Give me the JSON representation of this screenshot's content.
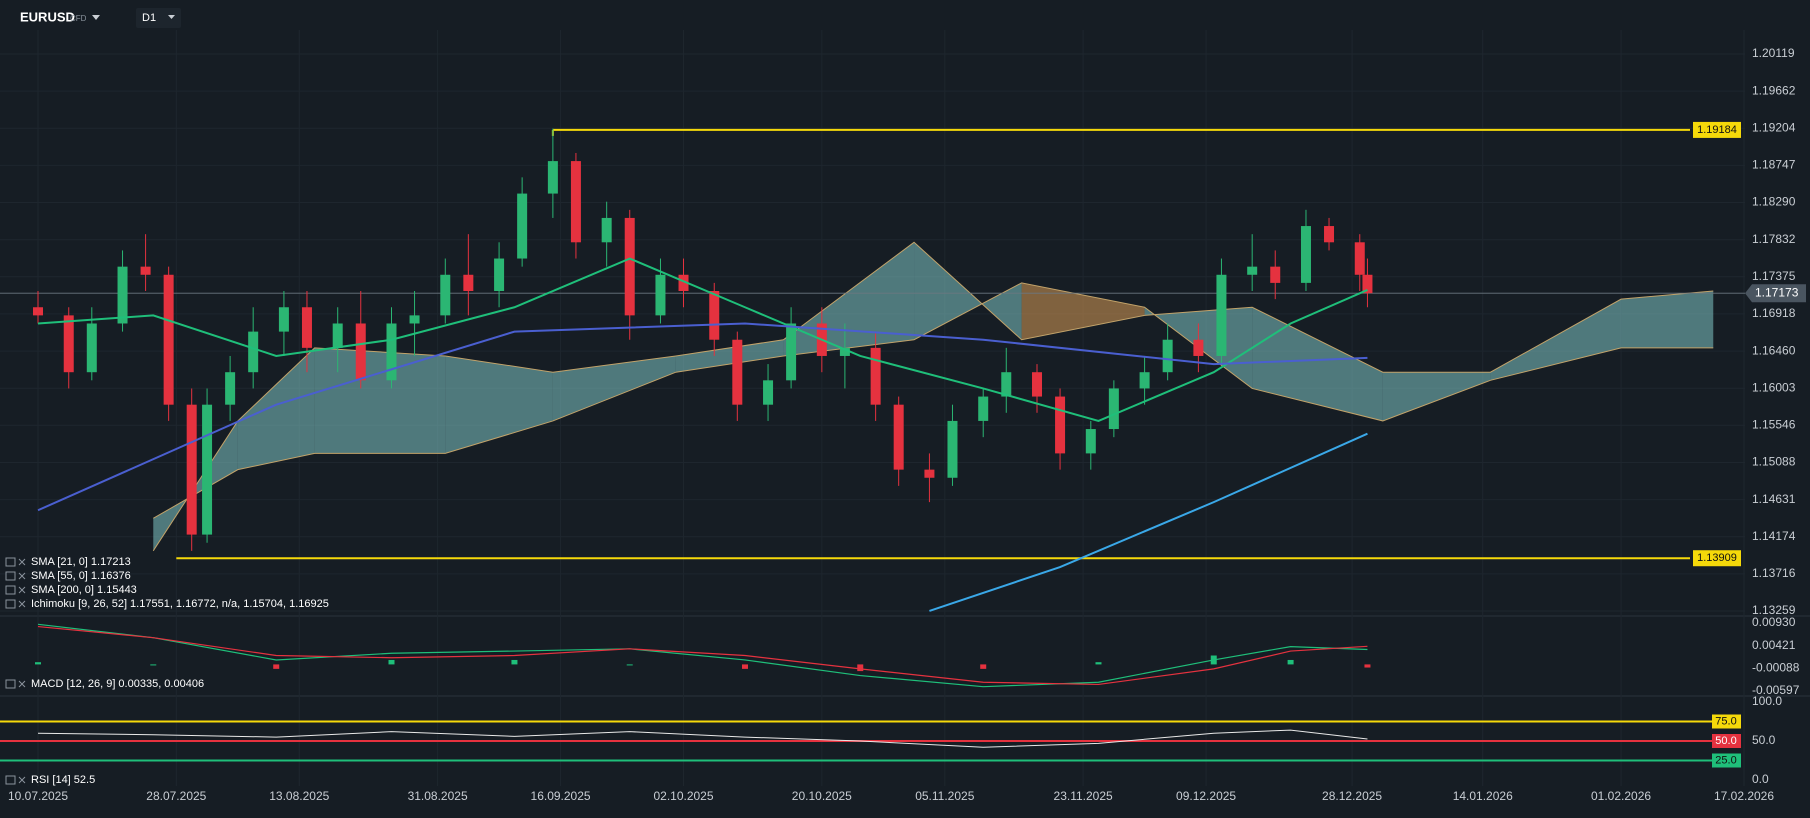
{
  "header": {
    "symbol": "EURUSD",
    "instrument_type": "CFD",
    "timeframe": "D1"
  },
  "chart_data": [
    {
      "type": "candlestick",
      "x": [
        "10.07.2025",
        "14.07.2025",
        "17.07.2025",
        "21.07.2025",
        "24.07.2025",
        "27.07.2025",
        "30.07.2025",
        "01.08.2025",
        "04.08.2025",
        "07.08.2025",
        "11.08.2025",
        "14.08.2025",
        "18.08.2025",
        "21.08.2025",
        "25.08.2025",
        "28.08.2025",
        "01.09.2025",
        "04.09.2025",
        "08.09.2025",
        "11.09.2025",
        "15.09.2025",
        "18.09.2025",
        "22.09.2025",
        "25.09.2025",
        "29.09.2025",
        "02.10.2025",
        "06.10.2025",
        "09.10.2025",
        "13.10.2025",
        "16.10.2025",
        "20.10.2025",
        "23.10.2025",
        "27.10.2025",
        "30.10.2025",
        "03.11.2025",
        "06.11.2025",
        "10.11.2025",
        "13.11.2025",
        "17.11.2025",
        "20.11.2025",
        "24.11.2025",
        "27.11.2025",
        "01.12.2025",
        "04.12.2025",
        "08.12.2025",
        "11.12.2025",
        "15.12.2025",
        "18.12.2025",
        "22.12.2025",
        "25.12.2025",
        "29.12.2025",
        "30.12.2025"
      ],
      "open": [
        1.17,
        1.169,
        1.162,
        1.168,
        1.175,
        1.174,
        1.158,
        1.142,
        1.158,
        1.162,
        1.167,
        1.17,
        1.165,
        1.168,
        1.161,
        1.168,
        1.169,
        1.174,
        1.172,
        1.176,
        1.184,
        1.188,
        1.178,
        1.181,
        1.169,
        1.174,
        1.172,
        1.166,
        1.158,
        1.161,
        1.168,
        1.164,
        1.165,
        1.158,
        1.15,
        1.149,
        1.156,
        1.159,
        1.162,
        1.159,
        1.152,
        1.155,
        1.16,
        1.162,
        1.166,
        1.164,
        1.174,
        1.175,
        1.173,
        1.18,
        1.178,
        1.174
      ],
      "high": [
        1.172,
        1.17,
        1.17,
        1.177,
        1.179,
        1.175,
        1.16,
        1.16,
        1.164,
        1.17,
        1.172,
        1.172,
        1.17,
        1.172,
        1.17,
        1.172,
        1.176,
        1.179,
        1.178,
        1.186,
        1.192,
        1.189,
        1.183,
        1.182,
        1.176,
        1.176,
        1.173,
        1.167,
        1.163,
        1.17,
        1.17,
        1.168,
        1.167,
        1.159,
        1.152,
        1.158,
        1.16,
        1.165,
        1.163,
        1.16,
        1.156,
        1.161,
        1.164,
        1.168,
        1.168,
        1.176,
        1.179,
        1.177,
        1.182,
        1.181,
        1.179,
        1.176
      ],
      "low": [
        1.168,
        1.16,
        1.161,
        1.167,
        1.172,
        1.156,
        1.14,
        1.141,
        1.156,
        1.16,
        1.164,
        1.162,
        1.162,
        1.16,
        1.16,
        1.164,
        1.168,
        1.169,
        1.17,
        1.175,
        1.181,
        1.176,
        1.175,
        1.166,
        1.168,
        1.17,
        1.164,
        1.156,
        1.156,
        1.16,
        1.162,
        1.16,
        1.156,
        1.148,
        1.146,
        1.148,
        1.154,
        1.157,
        1.157,
        1.15,
        1.15,
        1.154,
        1.158,
        1.161,
        1.162,
        1.163,
        1.172,
        1.171,
        1.172,
        1.177,
        1.172,
        1.17
      ],
      "close": [
        1.169,
        1.162,
        1.168,
        1.175,
        1.174,
        1.158,
        1.142,
        1.158,
        1.162,
        1.167,
        1.17,
        1.165,
        1.168,
        1.161,
        1.168,
        1.169,
        1.174,
        1.172,
        1.176,
        1.184,
        1.188,
        1.178,
        1.181,
        1.169,
        1.174,
        1.172,
        1.166,
        1.158,
        1.161,
        1.168,
        1.164,
        1.165,
        1.158,
        1.15,
        1.149,
        1.156,
        1.159,
        1.162,
        1.159,
        1.152,
        1.155,
        1.16,
        1.162,
        1.166,
        1.164,
        1.174,
        1.175,
        1.173,
        1.18,
        1.178,
        1.174,
        1.17173
      ],
      "colors": {
        "up": "#2bb673",
        "down": "#e5323f"
      },
      "ylim": [
        1.13259,
        1.20119
      ],
      "yticks": [
        1.13259,
        1.13716,
        1.14174,
        1.14631,
        1.15088,
        1.15546,
        1.16003,
        {
          "value": 1.1646,
          "label": "1.16460"
        },
        1.16918,
        1.17375,
        1.17832,
        {
          "value": 1.1829,
          "label": "1.18290"
        },
        1.18747,
        1.19204,
        1.19662,
        1.20119
      ],
      "xlim": [
        "10.07.2025",
        "17.02.2026"
      ],
      "xticks": [
        "10.07.2025",
        "28.07.2025",
        "13.08.2025",
        "31.08.2025",
        "16.09.2025",
        "02.10.2025",
        "20.10.2025",
        "05.11.2025",
        "23.11.2025",
        "09.12.2025",
        "28.12.2025",
        "14.01.2026",
        "01.02.2026",
        "17.02.2026"
      ],
      "grid": true,
      "series": [
        {
          "name": "SMA [21, 0] 1.17213",
          "color": "#1fbf7a",
          "x": [
            "10.07.2025",
            "25.07.2025",
            "10.08.2025",
            "25.08.2025",
            "10.09.2025",
            "25.09.2025",
            "10.10.2025",
            "25.10.2025",
            "10.11.2025",
            "25.11.2025",
            "10.12.2025",
            "20.12.2025",
            "30.12.2025"
          ],
          "values": [
            1.168,
            1.169,
            1.164,
            1.166,
            1.17,
            1.176,
            1.17,
            1.164,
            1.16,
            1.156,
            1.162,
            1.168,
            1.17213
          ]
        },
        {
          "name": "SMA [55, 0] 1.16376",
          "color": "#4a5fd0",
          "x": [
            "10.07.2025",
            "10.08.2025",
            "10.09.2025",
            "10.10.2025",
            "10.11.2025",
            "10.12.2025",
            "30.12.2025"
          ],
          "values": [
            1.145,
            1.158,
            1.167,
            1.168,
            1.166,
            1.163,
            1.16376
          ]
        },
        {
          "name": "SMA [200, 0] 1.15443",
          "color": "#3aa8e8",
          "x": [
            "03.11.2025",
            "20.11.2025",
            "10.12.2025",
            "30.12.2025"
          ],
          "values": [
            1.1326,
            1.138,
            1.146,
            1.15443
          ]
        }
      ],
      "cloud": {
        "name": "Ichimoku [9, 26, 52] 1.17551,  1.16772,  n/a,  1.15704,  1.16925",
        "x": [
          "25.07.2025",
          "05.08.2025",
          "15.08.2025",
          "01.09.2025",
          "15.09.2025",
          "01.10.2025",
          "15.10.2025",
          "01.11.2025",
          "15.11.2025",
          "01.12.2025",
          "15.12.2025",
          "01.01.2026",
          "15.01.2026",
          "01.02.2026",
          "13.02.2026"
        ],
        "span_a": [
          1.14,
          1.156,
          1.165,
          1.164,
          1.162,
          1.164,
          1.166,
          1.178,
          1.166,
          1.169,
          1.17,
          1.162,
          1.162,
          1.171,
          1.172
        ],
        "span_b": [
          1.144,
          1.15,
          1.152,
          1.152,
          1.156,
          1.162,
          1.164,
          1.166,
          1.173,
          1.17,
          1.16,
          1.156,
          1.161,
          1.165,
          1.165
        ],
        "colors": {
          "up": "#7fc4c4",
          "down": "#d99a55"
        }
      },
      "levels": [
        {
          "value": 1.19184,
          "start": "15.09.2025",
          "color": "#f5d90a"
        },
        {
          "value": 1.13909,
          "start": "28.07.2025",
          "color": "#f5d90a"
        }
      ],
      "last_price": 1.17173
    },
    {
      "type": "macd",
      "name": "MACD [12, 26, 9]  0.00335,  0.00406",
      "x": [
        "10.07.2025",
        "25.07.2025",
        "10.08.2025",
        "25.08.2025",
        "10.09.2025",
        "25.09.2025",
        "10.10.2025",
        "25.10.2025",
        "10.11.2025",
        "25.11.2025",
        "10.12.2025",
        "20.12.2025",
        "30.12.2025"
      ],
      "macd": [
        0.009,
        0.006,
        0.001,
        0.0025,
        0.003,
        0.0035,
        0.001,
        -0.0025,
        -0.005,
        -0.004,
        0.001,
        0.004,
        0.00335
      ],
      "signal": [
        0.0085,
        0.006,
        0.002,
        0.0015,
        0.002,
        0.0035,
        0.002,
        -0.001,
        -0.004,
        -0.0045,
        -0.001,
        0.003,
        0.00406
      ],
      "histogram": [
        0.0005,
        0,
        -0.001,
        0.001,
        0.001,
        0,
        -0.001,
        -0.0015,
        -0.001,
        0.0005,
        0.002,
        0.001,
        -0.0007
      ],
      "colors": {
        "macd": "#1fbf7a",
        "signal": "#e5323f",
        "up": "#1fbf7a",
        "down": "#e5323f"
      },
      "ylim": [
        -0.00597,
        0.0093
      ],
      "yticks": [
        -0.00597,
        -0.00088,
        0.00421,
        {
          "value": 0.0093,
          "label": "0.00930"
        }
      ]
    },
    {
      "type": "rsi",
      "name": "RSI [14] 52.5",
      "x": [
        "10.07.2025",
        "25.07.2025",
        "10.08.2025",
        "25.08.2025",
        "10.09.2025",
        "25.09.2025",
        "10.10.2025",
        "25.10.2025",
        "10.11.2025",
        "25.11.2025",
        "10.12.2025",
        "20.12.2025",
        "30.12.2025"
      ],
      "values": [
        60,
        58,
        55,
        62,
        56,
        62,
        55,
        50,
        42,
        47,
        60,
        64,
        52.5
      ],
      "color": "#e8e8e8",
      "ylim": [
        0,
        100
      ],
      "yticks": [
        {
          "value": 0,
          "label": "0.0"
        },
        {
          "value": 50,
          "label": "50.0"
        },
        {
          "value": 100,
          "label": "100.0"
        }
      ],
      "levels": [
        {
          "value": 75,
          "label": "75.0",
          "color": "#f5d90a"
        },
        {
          "value": 50,
          "label": "50.0",
          "color": "#e5323f"
        },
        {
          "value": 25,
          "label": "25.0",
          "color": "#1fbf7a"
        }
      ]
    }
  ]
}
